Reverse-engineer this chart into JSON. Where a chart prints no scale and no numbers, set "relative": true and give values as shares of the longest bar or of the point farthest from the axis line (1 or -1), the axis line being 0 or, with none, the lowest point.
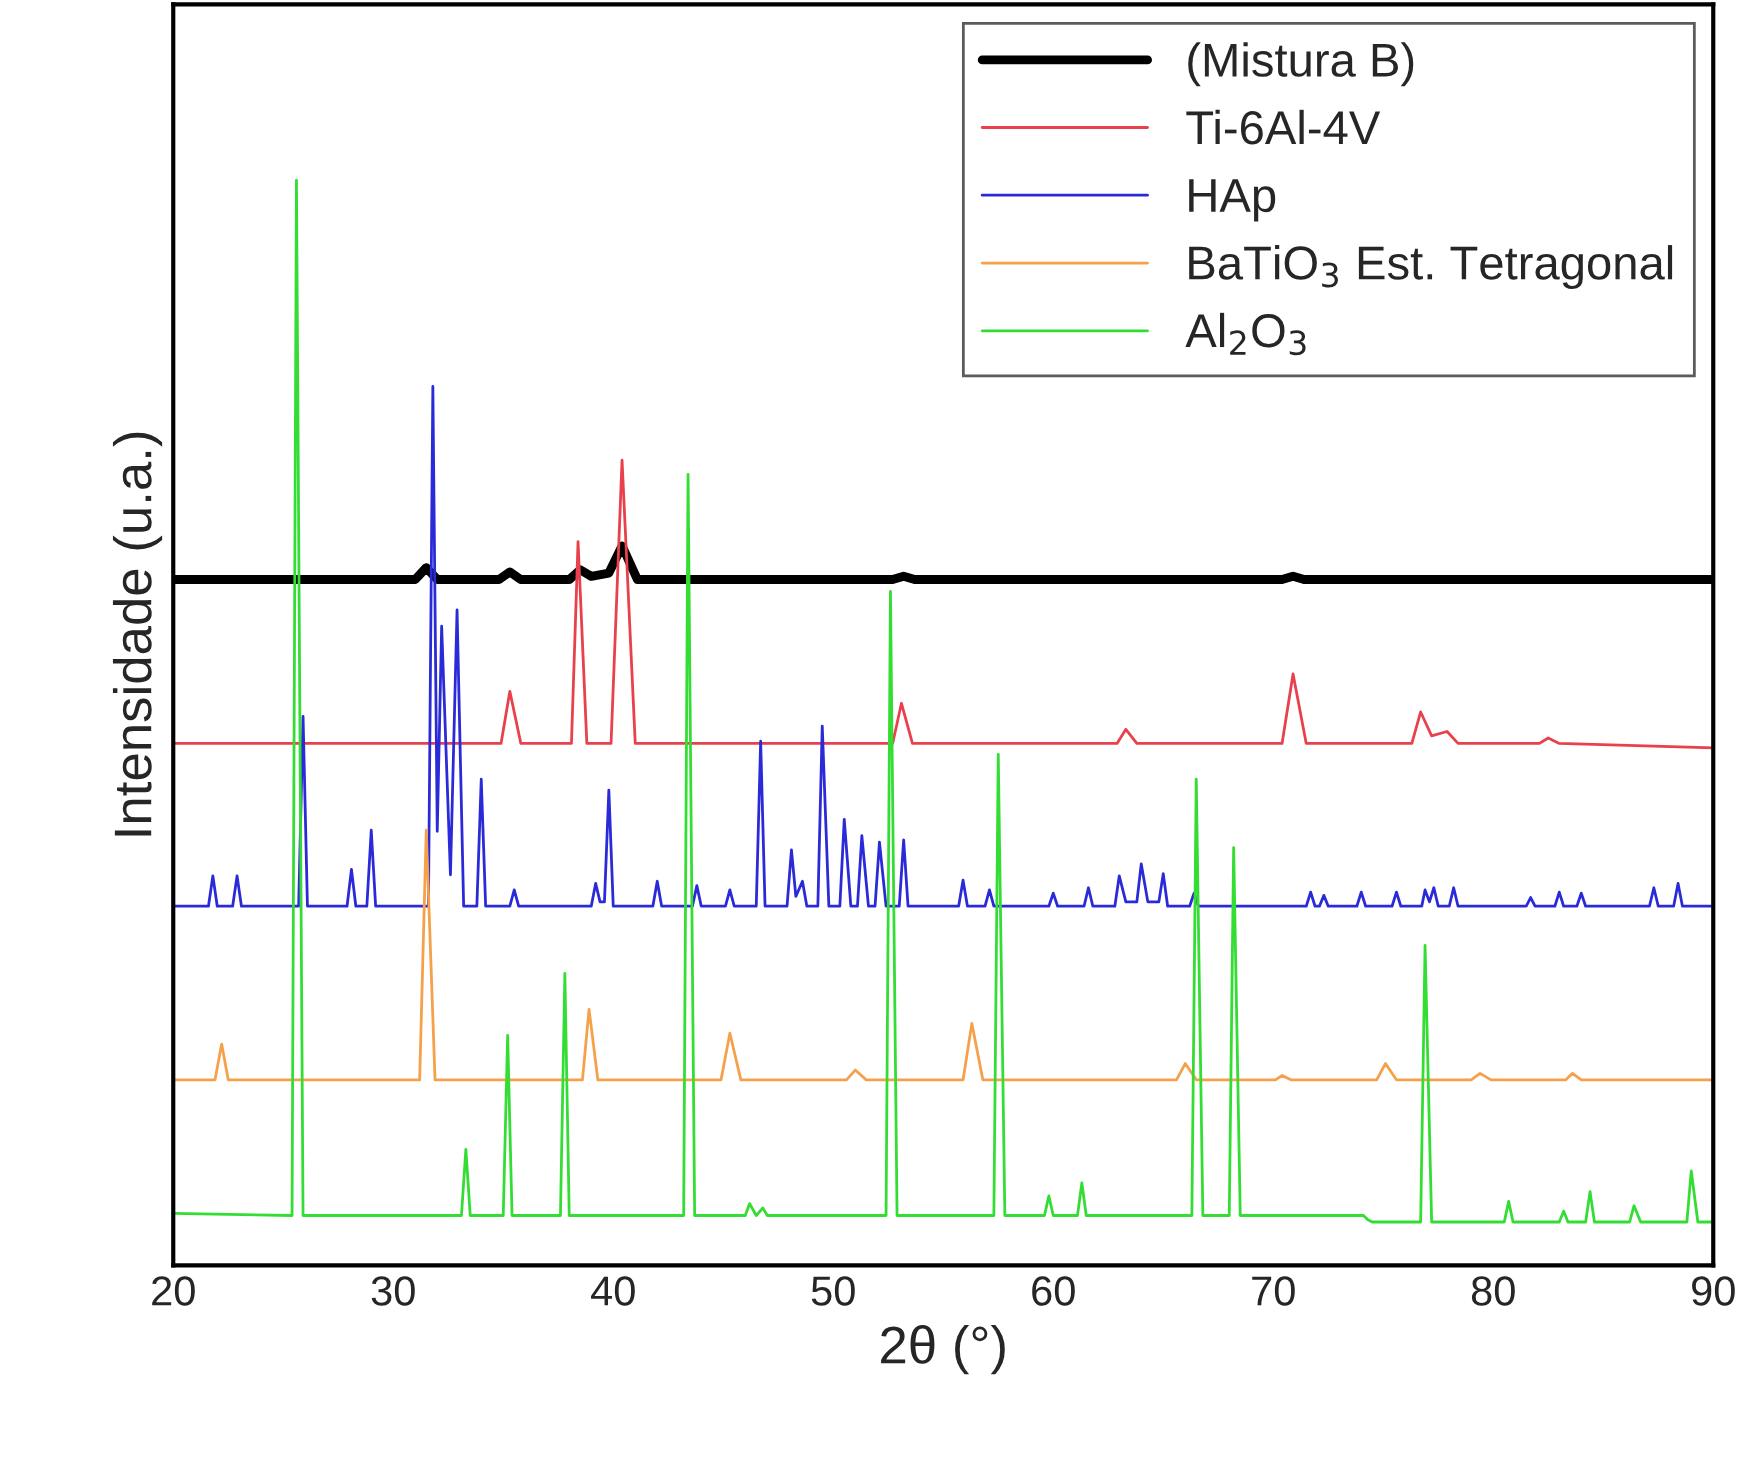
{
  "chart_data": {
    "type": "line",
    "relative": true,
    "xlabel": "2θ (°)",
    "ylabel": "Intensidade (u.a.)",
    "xlim": [
      20,
      90
    ],
    "xticks": [
      20,
      30,
      40,
      50,
      60,
      70,
      80,
      90
    ],
    "legend": "top right",
    "grid": false,
    "series": [
      {
        "name": "(Mistura B)",
        "color": "#000000",
        "x": [
          20,
          31.0,
          31.5,
          32.0,
          34.8,
          35.3,
          35.8,
          38.0,
          38.5,
          39.0,
          39.8,
          40.4,
          41.1,
          52.7,
          53.2,
          53.7,
          70.4,
          70.9,
          71.4,
          90
        ],
        "values": [
          0.632,
          0.632,
          0.643,
          0.632,
          0.632,
          0.639,
          0.632,
          0.632,
          0.641,
          0.635,
          0.638,
          0.663,
          0.632,
          0.632,
          0.635,
          0.632,
          0.632,
          0.635,
          0.632,
          0.632
        ]
      },
      {
        "name": "Ti-6Al-4V",
        "color": "#e8414b",
        "x": [
          20,
          34.9,
          35.3,
          35.8,
          38.1,
          38.4,
          38.8,
          39.9,
          40.4,
          41.0,
          52.7,
          53.1,
          53.6,
          62.9,
          63.3,
          63.8,
          70.4,
          70.9,
          71.5,
          76.3,
          76.7,
          77.2,
          77.9,
          78.4,
          82.1,
          82.5,
          83.0,
          90
        ],
        "values": [
          0.481,
          0.481,
          0.529,
          0.481,
          0.481,
          0.667,
          0.481,
          0.481,
          0.742,
          0.481,
          0.481,
          0.518,
          0.481,
          0.481,
          0.494,
          0.481,
          0.481,
          0.545,
          0.481,
          0.481,
          0.51,
          0.488,
          0.492,
          0.481,
          0.481,
          0.486,
          0.481,
          0.477
        ]
      },
      {
        "name": "HAp",
        "color": "#2a2ad8",
        "x": [
          20,
          21.6,
          21.8,
          22.0,
          22.7,
          22.9,
          23.1,
          25.7,
          25.9,
          26.1,
          27.9,
          28.1,
          28.3,
          28.8,
          29.0,
          29.2,
          31.6,
          31.8,
          32.0,
          32.2,
          32.6,
          32.9,
          33.2,
          33.8,
          34.0,
          34.2,
          35.3,
          35.5,
          35.7,
          39.0,
          39.2,
          39.4,
          39.6,
          39.8,
          40.0,
          41.8,
          42.0,
          42.2,
          43.6,
          43.8,
          44.0,
          45.1,
          45.3,
          45.5,
          46.5,
          46.7,
          46.9,
          47.9,
          48.1,
          48.3,
          48.6,
          48.8,
          49.3,
          49.5,
          49.8,
          50.3,
          50.5,
          50.8,
          51.1,
          51.3,
          51.6,
          51.9,
          52.1,
          52.4,
          53.0,
          53.2,
          53.4,
          55.7,
          55.9,
          56.1,
          56.9,
          57.1,
          57.3,
          59.8,
          60.0,
          60.2,
          61.4,
          61.6,
          61.8,
          62.8,
          63.0,
          63.3,
          63.8,
          64.0,
          64.3,
          64.8,
          65.0,
          65.2,
          66.2,
          66.4,
          66.6,
          71.5,
          71.7,
          71.9,
          72.1,
          72.3,
          72.5,
          73.8,
          74.0,
          74.2,
          75.4,
          75.6,
          75.8,
          76.75,
          76.9,
          77.1,
          77.3,
          77.5,
          78.0,
          78.2,
          78.4,
          81.5,
          81.7,
          81.9,
          82.8,
          83.0,
          83.2,
          83.8,
          84.0,
          84.2,
          87.1,
          87.3,
          87.5,
          88.2,
          88.4,
          88.6,
          90
        ],
        "values": [
          0.331,
          0.331,
          0.359,
          0.331,
          0.331,
          0.359,
          0.331,
          0.331,
          0.506,
          0.331,
          0.331,
          0.365,
          0.331,
          0.331,
          0.401,
          0.331,
          0.331,
          0.81,
          0.4,
          0.589,
          0.36,
          0.604,
          0.331,
          0.331,
          0.448,
          0.331,
          0.331,
          0.346,
          0.331,
          0.331,
          0.352,
          0.335,
          0.335,
          0.438,
          0.331,
          0.331,
          0.354,
          0.331,
          0.331,
          0.35,
          0.331,
          0.331,
          0.346,
          0.331,
          0.331,
          0.483,
          0.331,
          0.331,
          0.383,
          0.34,
          0.354,
          0.331,
          0.331,
          0.497,
          0.331,
          0.331,
          0.411,
          0.331,
          0.331,
          0.396,
          0.331,
          0.331,
          0.39,
          0.331,
          0.331,
          0.392,
          0.331,
          0.331,
          0.355,
          0.331,
          0.331,
          0.346,
          0.331,
          0.331,
          0.343,
          0.331,
          0.331,
          0.348,
          0.331,
          0.331,
          0.359,
          0.335,
          0.335,
          0.37,
          0.335,
          0.335,
          0.361,
          0.331,
          0.331,
          0.343,
          0.331,
          0.331,
          0.344,
          0.331,
          0.331,
          0.341,
          0.331,
          0.331,
          0.344,
          0.331,
          0.331,
          0.344,
          0.331,
          0.331,
          0.346,
          0.335,
          0.348,
          0.331,
          0.331,
          0.348,
          0.331,
          0.331,
          0.339,
          0.331,
          0.331,
          0.344,
          0.331,
          0.331,
          0.343,
          0.331,
          0.331,
          0.348,
          0.331,
          0.331,
          0.352,
          0.331,
          0.331
        ]
      },
      {
        "name": "BaTiO$_{3}$ Est. Tetragonal",
        "color": "#f5a04a",
        "x": [
          20,
          21.9,
          22.2,
          22.5,
          31.2,
          31.5,
          31.9,
          38.6,
          38.9,
          39.3,
          44.9,
          45.3,
          45.8,
          50.6,
          51.0,
          51.5,
          55.9,
          56.3,
          56.8,
          65.6,
          66.0,
          66.5,
          70.1,
          70.4,
          70.8,
          74.7,
          75.1,
          75.6,
          79.0,
          79.4,
          79.9,
          83.3,
          83.6,
          84.0,
          90
        ],
        "values": [
          0.171,
          0.171,
          0.204,
          0.171,
          0.171,
          0.401,
          0.171,
          0.171,
          0.236,
          0.171,
          0.171,
          0.214,
          0.171,
          0.171,
          0.18,
          0.171,
          0.171,
          0.223,
          0.171,
          0.171,
          0.186,
          0.171,
          0.171,
          0.175,
          0.171,
          0.171,
          0.186,
          0.171,
          0.171,
          0.177,
          0.171,
          0.171,
          0.177,
          0.171,
          0.171
        ]
      },
      {
        "name": "Al$_{2}$O$_{3}$",
        "color": "#33dd33",
        "x": [
          20,
          25.4,
          25.6,
          25.9,
          33.1,
          33.3,
          33.5,
          35.0,
          35.2,
          35.4,
          37.6,
          37.8,
          38.0,
          43.2,
          43.4,
          43.7,
          46.0,
          46.2,
          46.5,
          46.8,
          47.0,
          52.4,
          52.6,
          52.9,
          57.3,
          57.5,
          57.8,
          59.6,
          59.8,
          60.0,
          61.1,
          61.3,
          61.5,
          66.3,
          66.5,
          66.8,
          68.0,
          68.2,
          68.5,
          74.1,
          74.3,
          74.5,
          76.7,
          76.9,
          77.2,
          80.5,
          80.7,
          80.9,
          83.0,
          83.2,
          83.4,
          84.2,
          84.4,
          84.6,
          86.2,
          86.4,
          86.7,
          88.8,
          89.0,
          89.3,
          90
        ],
        "values": [
          0.048,
          0.046,
          1.0,
          0.046,
          0.046,
          0.107,
          0.046,
          0.046,
          0.212,
          0.046,
          0.046,
          0.269,
          0.046,
          0.046,
          0.729,
          0.046,
          0.046,
          0.057,
          0.046,
          0.053,
          0.046,
          0.046,
          0.621,
          0.046,
          0.046,
          0.471,
          0.046,
          0.046,
          0.064,
          0.046,
          0.046,
          0.076,
          0.046,
          0.046,
          0.448,
          0.046,
          0.046,
          0.385,
          0.046,
          0.046,
          0.042,
          0.04,
          0.04,
          0.295,
          0.04,
          0.04,
          0.059,
          0.04,
          0.04,
          0.05,
          0.04,
          0.04,
          0.068,
          0.04,
          0.04,
          0.055,
          0.04,
          0.04,
          0.087,
          0.04,
          0.04
        ]
      }
    ]
  }
}
